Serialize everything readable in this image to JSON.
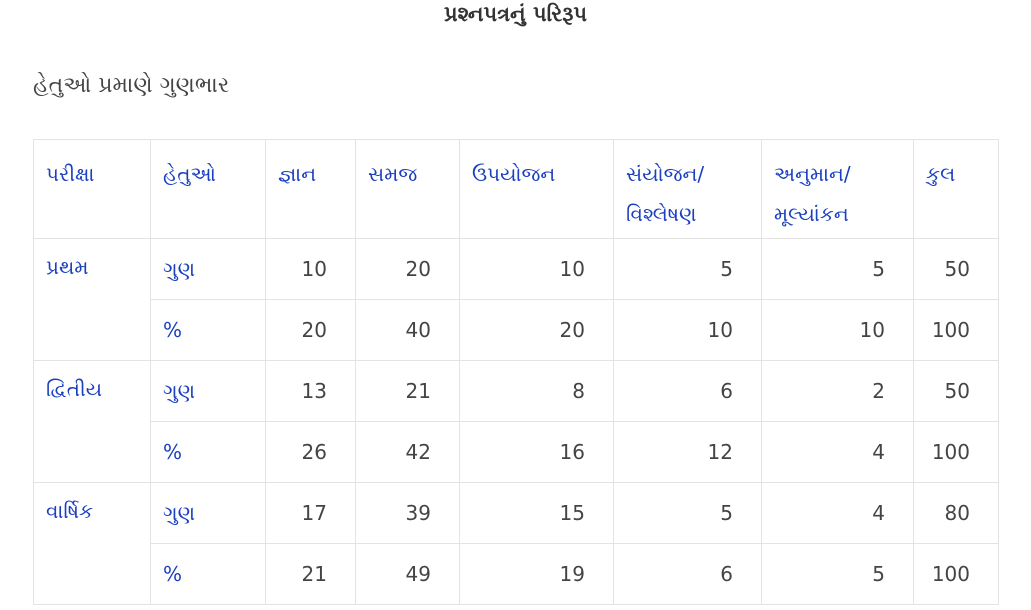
{
  "page_title": "પ્રશ્નપત્રનું પરિરૂપ",
  "subtitle": "હેતુઓ પ્રમાણે ગુણભાર",
  "table": {
    "headers": [
      "પરીક્ષા",
      "હેતુઓ",
      "જ્ઞાન",
      "સમજ",
      "ઉપયોજન",
      "સંયોજન/ વિશ્લેષણ",
      "અનુમાન/ મૂલ્યાંકન",
      "કુલ"
    ],
    "groups": [
      {
        "exam": "પ્રથમ",
        "rows": [
          {
            "objective": "ગુણ",
            "values": [
              "10",
              "20",
              "10",
              "5",
              "5",
              "50"
            ]
          },
          {
            "objective": "%",
            "values": [
              "20",
              "40",
              "20",
              "10",
              "10",
              "100"
            ]
          }
        ]
      },
      {
        "exam": "દ્વિતીય",
        "rows": [
          {
            "objective": "ગુણ",
            "values": [
              "13",
              "21",
              "8",
              "6",
              "2",
              "50"
            ]
          },
          {
            "objective": "%",
            "values": [
              "26",
              "42",
              "16",
              "12",
              "4",
              "100"
            ]
          }
        ]
      },
      {
        "exam": "વાર્ષિક",
        "rows": [
          {
            "objective": "ગુણ",
            "values": [
              "17",
              "39",
              "15",
              "5",
              "4",
              "80"
            ]
          },
          {
            "objective": "%",
            "values": [
              "21",
              "49",
              "19",
              "6",
              "5",
              "100"
            ]
          }
        ]
      }
    ]
  },
  "colors": {
    "accent_blue": "#1a3fbf",
    "text_gray": "#444444",
    "border": "#e3e3e3"
  }
}
